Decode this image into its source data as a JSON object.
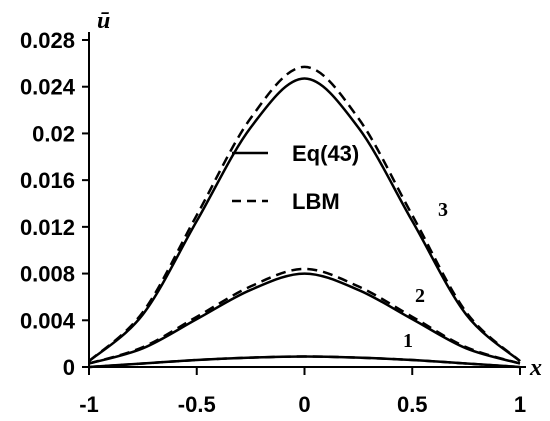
{
  "chart_data": {
    "type": "line",
    "title": "",
    "xlabel": "x",
    "ylabel": "ū",
    "xlim": [
      -1,
      1
    ],
    "ylim": [
      0,
      0.028
    ],
    "x_ticks": [
      "-1",
      "-0.5",
      "0",
      "0.5",
      "1"
    ],
    "y_ticks": [
      "0",
      "0.004",
      "0.008",
      "0.012",
      "0.016",
      "0.02",
      "0.024",
      "0.028"
    ],
    "grid": false,
    "legend_position": "center",
    "legend": [
      {
        "label": "Eq(43)",
        "style": "solid"
      },
      {
        "label": "LBM",
        "style": "dashed"
      }
    ],
    "series": [
      {
        "curve_label": "1",
        "method": "Eq(43)",
        "x": [
          -1,
          -0.75,
          -0.5,
          -0.25,
          0,
          0.25,
          0.5,
          0.75,
          1
        ],
        "y": [
          0.0,
          0.0003,
          0.0006,
          0.0008,
          0.0009,
          0.0008,
          0.0006,
          0.0003,
          0.0
        ]
      },
      {
        "curve_label": "1",
        "method": "LBM",
        "x": [
          -1,
          -0.75,
          -0.5,
          -0.25,
          0,
          0.25,
          0.5,
          0.75,
          1
        ],
        "y": [
          0.0,
          0.0003,
          0.0006,
          0.0008,
          0.0009,
          0.0008,
          0.0006,
          0.0003,
          0.0
        ]
      },
      {
        "curve_label": "2",
        "method": "Eq(43)",
        "x": [
          -1,
          -0.75,
          -0.5,
          -0.25,
          0,
          0.25,
          0.5,
          0.75,
          1
        ],
        "y": [
          0.0003,
          0.0016,
          0.0041,
          0.0066,
          0.008,
          0.0066,
          0.0041,
          0.0016,
          0.0003
        ]
      },
      {
        "curve_label": "2",
        "method": "LBM",
        "x": [
          -1,
          -0.75,
          -0.5,
          -0.25,
          0,
          0.25,
          0.5,
          0.75,
          1
        ],
        "y": [
          0.0003,
          0.0017,
          0.0043,
          0.0069,
          0.0084,
          0.0069,
          0.0043,
          0.0017,
          0.0003
        ]
      },
      {
        "curve_label": "3",
        "method": "Eq(43)",
        "x": [
          -1,
          -0.75,
          -0.5,
          -0.25,
          0,
          0.25,
          0.5,
          0.75,
          1
        ],
        "y": [
          0.0005,
          0.0045,
          0.0125,
          0.0205,
          0.0247,
          0.0205,
          0.0125,
          0.0045,
          0.0005
        ]
      },
      {
        "curve_label": "3",
        "method": "LBM",
        "x": [
          -1,
          -0.75,
          -0.5,
          -0.25,
          0,
          0.25,
          0.5,
          0.75,
          1
        ],
        "y": [
          0.0005,
          0.0047,
          0.013,
          0.0213,
          0.0257,
          0.0213,
          0.013,
          0.0047,
          0.0005
        ]
      }
    ]
  }
}
